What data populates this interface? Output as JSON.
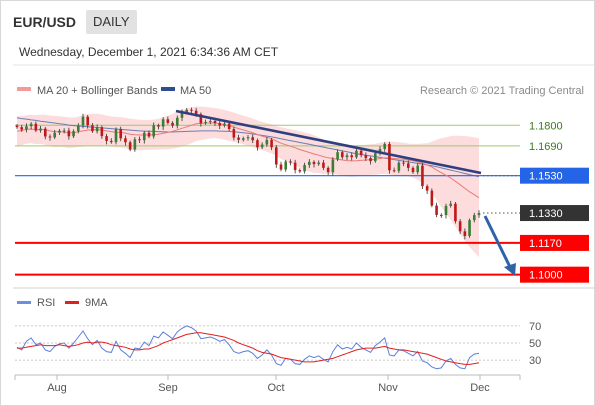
{
  "header": {
    "symbol": "EUR/USD",
    "timeframe": "DAILY"
  },
  "timestamp": "Wednesday, December 1, 2021 6:34:36 AM CET",
  "legend": {
    "ma20": "MA 20 + Bollinger Bands",
    "ma50": "MA 50",
    "source": "Research © 2021 Trading Central"
  },
  "rsi_legend": {
    "rsi": "RSI",
    "ma9": "9MA"
  },
  "colors": {
    "up_candle": "#3a7d34",
    "down_candle": "#c01818",
    "band_fill": "#fbd6d6",
    "ma20": "#e97b7b",
    "ma50": "#3b5fa8",
    "trendline": "#2f3f7f",
    "support": "#ff0000",
    "pivot": "#2464e6",
    "resistance": "#9acd6a",
    "last_price": "#333333",
    "forecast_arrow": "#2f63a8",
    "rsi": "#5b7fdc",
    "rsi_ma": "#e02020"
  },
  "chart_data": [
    {
      "type": "candlestick",
      "title": "EUR/USD",
      "x_labels": [
        "Aug",
        "Sep",
        "Oct",
        "Nov",
        "Dec"
      ],
      "y_domain": [
        1.095,
        1.193
      ],
      "levels": [
        {
          "label": "1.1800",
          "value": 1.18,
          "kind": "resistance"
        },
        {
          "label": "1.1690",
          "value": 1.169,
          "kind": "resistance"
        },
        {
          "label": "1.1530",
          "value": 1.153,
          "kind": "pivot"
        },
        {
          "label": "1.1330",
          "value": 1.133,
          "kind": "last"
        },
        {
          "label": "1.1170",
          "value": 1.117,
          "kind": "support"
        },
        {
          "label": "1.1000",
          "value": 1.1,
          "kind": "target"
        }
      ],
      "closes": [
        1.179,
        1.1777,
        1.1795,
        1.1808,
        1.1772,
        1.1782,
        1.174,
        1.1735,
        1.176,
        1.1771,
        1.1772,
        1.1741,
        1.1769,
        1.1799,
        1.1846,
        1.18,
        1.1768,
        1.179,
        1.1742,
        1.1716,
        1.171,
        1.178,
        1.173,
        1.1709,
        1.167,
        1.1725,
        1.172,
        1.176,
        1.174,
        1.18,
        1.1793,
        1.1832,
        1.1813,
        1.1798,
        1.184,
        1.187,
        1.1883,
        1.1878,
        1.186,
        1.1811,
        1.1818,
        1.1823,
        1.1812,
        1.1798,
        1.1809,
        1.178,
        1.1734,
        1.1722,
        1.173,
        1.1736,
        1.172,
        1.1682,
        1.1697,
        1.1722,
        1.1682,
        1.159,
        1.1563,
        1.1606,
        1.16,
        1.156,
        1.1553,
        1.1587,
        1.1604,
        1.1592,
        1.16,
        1.1572,
        1.1549,
        1.1617,
        1.1656,
        1.1629,
        1.1639,
        1.1629,
        1.1664,
        1.164,
        1.1624,
        1.1608,
        1.165,
        1.1673,
        1.17,
        1.1559,
        1.1556,
        1.16,
        1.1596,
        1.1572,
        1.1549,
        1.1584,
        1.1474,
        1.145,
        1.137,
        1.132,
        1.1319,
        1.1368,
        1.138,
        1.1286,
        1.1232,
        1.1207,
        1.1292,
        1.1319,
        1.133
      ],
      "overlays": {
        "ma20": [
          1.1768,
          1.1772,
          1.1778,
          1.178,
          1.1776,
          1.1778,
          1.1776,
          1.177,
          1.1766,
          1.1766,
          1.1764,
          1.176,
          1.176,
          1.1765,
          1.177,
          1.1774,
          1.1776,
          1.1777,
          1.1774,
          1.177,
          1.1766,
          1.1763,
          1.1762,
          1.1758,
          1.1752,
          1.1749,
          1.1748,
          1.1748,
          1.1748,
          1.175,
          1.1752,
          1.1757,
          1.1762,
          1.1768,
          1.1776,
          1.1784,
          1.1792,
          1.18,
          1.1808,
          1.181,
          1.1812,
          1.1812,
          1.1812,
          1.1808,
          1.1802,
          1.1797,
          1.179,
          1.1782,
          1.1775,
          1.1768,
          1.176,
          1.175,
          1.1742,
          1.1735,
          1.1728,
          1.1716,
          1.1704,
          1.1696,
          1.1688,
          1.168,
          1.167,
          1.1662,
          1.1654,
          1.1646,
          1.164,
          1.1632,
          1.1626,
          1.1622,
          1.1618,
          1.1614,
          1.1611,
          1.1609,
          1.161,
          1.1612,
          1.1614,
          1.1616,
          1.1618,
          1.1622,
          1.1626,
          1.1624,
          1.1622,
          1.162,
          1.1618,
          1.1614,
          1.161,
          1.1604,
          1.1596,
          1.1588,
          1.1576,
          1.156,
          1.1546,
          1.1532,
          1.1518,
          1.15,
          1.1482,
          1.1462,
          1.1444,
          1.1428,
          1.1412
        ],
        "band_upper": [
          1.1848,
          1.185,
          1.1854,
          1.1856,
          1.1854,
          1.1856,
          1.1856,
          1.1852,
          1.185,
          1.1848,
          1.1846,
          1.1842,
          1.184,
          1.1846,
          1.1856,
          1.186,
          1.1862,
          1.1862,
          1.1858,
          1.1852,
          1.1847,
          1.1845,
          1.1843,
          1.184,
          1.1836,
          1.1832,
          1.183,
          1.1829,
          1.1828,
          1.1831,
          1.1834,
          1.1843,
          1.1852,
          1.1861,
          1.1872,
          1.1882,
          1.189,
          1.1896,
          1.19,
          1.19,
          1.1898,
          1.1895,
          1.1892,
          1.1888,
          1.1882,
          1.1876,
          1.1868,
          1.186,
          1.1852,
          1.1845,
          1.1836,
          1.1826,
          1.1818,
          1.1812,
          1.1806,
          1.1796,
          1.1789,
          1.1784,
          1.1779,
          1.1774,
          1.1768,
          1.1762,
          1.1756,
          1.1746,
          1.1736,
          1.1724,
          1.1712,
          1.1704,
          1.17,
          1.1698,
          1.1696,
          1.1694,
          1.1694,
          1.1694,
          1.1696,
          1.1698,
          1.17,
          1.1706,
          1.1712,
          1.1712,
          1.1712,
          1.171,
          1.1706,
          1.1702,
          1.17,
          1.17,
          1.1702,
          1.1704,
          1.1712,
          1.1722,
          1.173,
          1.1736,
          1.1742,
          1.1744,
          1.1744,
          1.1742,
          1.174,
          1.1736,
          1.173
        ],
        "band_lower": [
          1.1688,
          1.1694,
          1.1702,
          1.1704,
          1.1698,
          1.17,
          1.1696,
          1.1688,
          1.1682,
          1.1684,
          1.1682,
          1.1678,
          1.168,
          1.1684,
          1.1684,
          1.1688,
          1.169,
          1.1692,
          1.169,
          1.1688,
          1.1685,
          1.1681,
          1.1681,
          1.1676,
          1.1668,
          1.1666,
          1.1666,
          1.1667,
          1.1668,
          1.1669,
          1.167,
          1.1671,
          1.1672,
          1.1675,
          1.168,
          1.1686,
          1.1694,
          1.1704,
          1.1716,
          1.172,
          1.1726,
          1.1729,
          1.1732,
          1.1728,
          1.1722,
          1.1718,
          1.1712,
          1.1704,
          1.1698,
          1.1691,
          1.1684,
          1.1674,
          1.1666,
          1.1658,
          1.165,
          1.1636,
          1.1619,
          1.1608,
          1.1597,
          1.1586,
          1.1572,
          1.1562,
          1.1552,
          1.1546,
          1.1544,
          1.154,
          1.154,
          1.154,
          1.1536,
          1.153,
          1.1526,
          1.1524,
          1.1526,
          1.153,
          1.1532,
          1.1534,
          1.1536,
          1.1538,
          1.154,
          1.1536,
          1.1532,
          1.153,
          1.153,
          1.1526,
          1.152,
          1.1508,
          1.149,
          1.1472,
          1.144,
          1.1398,
          1.1362,
          1.1328,
          1.1294,
          1.1256,
          1.122,
          1.1182,
          1.1148,
          1.112,
          1.1094
        ],
        "ma50": [
          1.184,
          1.1836,
          1.1833,
          1.1829,
          1.1826,
          1.1822,
          1.1819,
          1.1815,
          1.1812,
          1.1808,
          1.1805,
          1.1801,
          1.1798,
          1.1796,
          1.1794,
          1.1792,
          1.179,
          1.1788,
          1.1786,
          1.1784,
          1.1782,
          1.178,
          1.1778,
          1.1776,
          1.1774,
          1.1772,
          1.177,
          1.1769,
          1.1768,
          1.1767,
          1.1766,
          1.1765,
          1.1764,
          1.1764,
          1.1765,
          1.1766,
          1.1767,
          1.1768,
          1.1769,
          1.177,
          1.177,
          1.177,
          1.177,
          1.1769,
          1.1768,
          1.1767,
          1.1765,
          1.1763,
          1.176,
          1.1757,
          1.1754,
          1.175,
          1.1746,
          1.1742,
          1.1738,
          1.1733,
          1.1728,
          1.1723,
          1.1718,
          1.1713,
          1.1708,
          1.1703,
          1.1698,
          1.1693,
          1.1688,
          1.1683,
          1.1678,
          1.1673,
          1.1668,
          1.1663,
          1.1658,
          1.1653,
          1.1648,
          1.1644,
          1.164,
          1.1636,
          1.1632,
          1.1628,
          1.1624,
          1.162,
          1.1616,
          1.1612,
          1.1608,
          1.1604,
          1.16,
          1.1596,
          1.1592,
          1.1588,
          1.1583,
          1.1578,
          1.1572,
          1.1566,
          1.156,
          1.1554,
          1.1548,
          1.1542,
          1.1536,
          1.153,
          1.1524
        ]
      }
    },
    {
      "type": "line",
      "title": "RSI",
      "x_labels": [
        "Aug",
        "Sep",
        "Oct",
        "Nov",
        "Dec"
      ],
      "y_ticks": [
        70,
        50,
        30
      ],
      "y_domain": [
        15,
        78
      ],
      "series": [
        {
          "name": "RSI",
          "values": [
            45,
            42,
            52,
            56,
            48,
            50,
            42,
            40,
            46,
            49,
            50,
            44,
            50,
            57,
            64,
            55,
            48,
            53,
            44,
            40,
            39,
            52,
            42,
            38,
            33,
            44,
            43,
            51,
            47,
            58,
            56,
            63,
            59,
            55,
            63,
            67,
            70,
            68,
            64,
            55,
            56,
            57,
            55,
            52,
            54,
            48,
            40,
            38,
            40,
            41,
            38,
            32,
            36,
            42,
            36,
            26,
            24,
            32,
            31,
            26,
            25,
            31,
            35,
            33,
            35,
            31,
            28,
            40,
            48,
            43,
            45,
            43,
            50,
            45,
            42,
            39,
            47,
            51,
            56,
            36,
            35,
            42,
            41,
            38,
            35,
            40,
            29,
            27,
            22,
            20,
            21,
            29,
            32,
            25,
            21,
            20,
            33,
            37,
            38
          ]
        },
        {
          "name": "9MA",
          "values": [
            44,
            44,
            45,
            46,
            47,
            48,
            47,
            47,
            47,
            48,
            47,
            46,
            47,
            48,
            50,
            51,
            50,
            51,
            51,
            50,
            48,
            47,
            46,
            45,
            43,
            42,
            42,
            43,
            43,
            45,
            47,
            50,
            52,
            54,
            56,
            58,
            60,
            61,
            62,
            62,
            61,
            60,
            59,
            58,
            57,
            55,
            53,
            50,
            48,
            46,
            44,
            41,
            39,
            38,
            37,
            35,
            33,
            32,
            31,
            30,
            29,
            28,
            28,
            28,
            29,
            30,
            31,
            32,
            34,
            36,
            38,
            40,
            42,
            43,
            44,
            44,
            44,
            45,
            46,
            44,
            43,
            42,
            42,
            41,
            40,
            39,
            38,
            37,
            35,
            33,
            31,
            29,
            28,
            27,
            26,
            25,
            25,
            26,
            27
          ]
        }
      ]
    }
  ]
}
